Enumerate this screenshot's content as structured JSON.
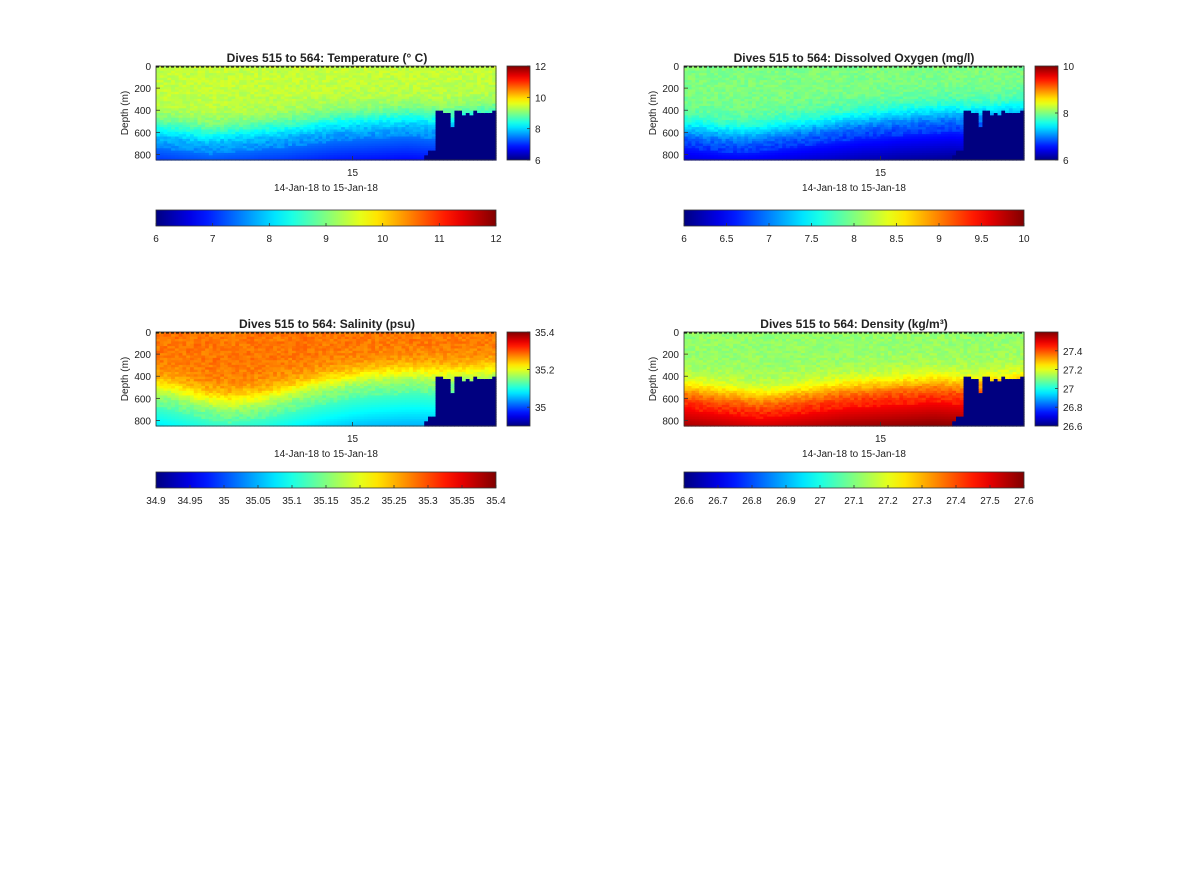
{
  "chart_data": [
    {
      "type": "heatmap",
      "title": "Dives 515 to 564: Temperature",
      "title_unit": "(° C)",
      "xlabel": "14-Jan-18 to 15-Jan-18",
      "ylabel": "Depth (m)",
      "x_ticks": [
        "15"
      ],
      "y_ticks": [
        0,
        200,
        400,
        600,
        800
      ],
      "ylim": [
        0,
        850
      ],
      "colormap": "jet",
      "clim": [
        6,
        12
      ],
      "side_colorbar_ticks": [
        6,
        8,
        10,
        12
      ],
      "bottom_colorbar_ticks": [
        6,
        7,
        8,
        9,
        10,
        11,
        12
      ],
      "profiles": {
        "surface_value": 9.4,
        "thermocline_depth_m": [
          560,
          580,
          600,
          620,
          600,
          590,
          570,
          560,
          540,
          520,
          500,
          490,
          480,
          470,
          460,
          470,
          480,
          470,
          450,
          440
        ],
        "deep_value": 7.4,
        "max_depth_m": [
          850,
          850,
          850,
          850,
          850,
          850,
          850,
          850,
          850,
          850,
          850,
          850,
          850,
          850,
          850,
          850,
          850,
          850,
          850,
          850,
          850,
          850,
          850,
          850,
          850,
          850,
          850,
          850,
          850,
          850,
          850,
          850,
          850,
          850,
          850,
          850,
          850,
          850,
          850,
          850,
          850,
          850,
          850,
          850,
          850,
          850,
          850,
          850,
          850,
          850,
          850,
          850,
          850,
          850,
          850,
          850,
          850,
          850,
          850,
          850,
          850,
          850,
          850,
          850,
          850,
          850,
          850,
          850,
          850,
          850,
          850,
          800,
          760,
          760,
          400,
          400,
          420,
          430,
          550,
          400,
          400,
          440,
          420,
          440,
          410,
          420,
          420,
          430,
          420,
          410,
          850
        ]
      }
    },
    {
      "type": "heatmap",
      "title": "Dives 515 to 564: Dissolved Oxygen (mg/l)",
      "xlabel": "14-Jan-18 to 15-Jan-18",
      "ylabel": "Depth (m)",
      "x_ticks": [
        "15"
      ],
      "y_ticks": [
        0,
        200,
        400,
        600,
        800
      ],
      "ylim": [
        0,
        850
      ],
      "colormap": "jet",
      "clim": [
        6,
        10
      ],
      "side_colorbar_ticks": [
        6,
        8,
        10
      ],
      "bottom_colorbar_ticks": [
        6,
        6.5,
        7,
        7.5,
        8,
        8.5,
        9,
        9.5,
        10
      ],
      "profiles": {
        "surface_value": 8.0,
        "thermocline_depth_m": [
          560,
          580,
          600,
          610,
          600,
          580,
          560,
          540,
          520,
          500,
          480,
          470,
          450,
          440,
          430,
          420,
          430,
          420,
          410,
          400
        ],
        "deep_value": 6.6,
        "max_depth_m": [
          850,
          850,
          850,
          850,
          850,
          850,
          850,
          850,
          850,
          850,
          850,
          850,
          850,
          850,
          850,
          850,
          850,
          850,
          850,
          850,
          850,
          850,
          850,
          850,
          850,
          850,
          850,
          850,
          850,
          850,
          850,
          850,
          850,
          850,
          850,
          850,
          850,
          850,
          850,
          850,
          850,
          850,
          850,
          850,
          850,
          850,
          850,
          850,
          850,
          850,
          850,
          850,
          850,
          850,
          850,
          850,
          850,
          850,
          850,
          850,
          850,
          850,
          850,
          850,
          850,
          850,
          850,
          850,
          850,
          850,
          850,
          800,
          760,
          760,
          400,
          400,
          420,
          430,
          550,
          400,
          400,
          440,
          420,
          440,
          410,
          420,
          420,
          430,
          420,
          410,
          850
        ]
      }
    },
    {
      "type": "heatmap",
      "title": "Dives 515 to 564: Salinity (psu)",
      "xlabel": "14-Jan-18 to 15-Jan-18",
      "ylabel": "Depth (m)",
      "x_ticks": [
        "15"
      ],
      "y_ticks": [
        0,
        200,
        400,
        600,
        800
      ],
      "ylim": [
        0,
        850
      ],
      "colormap": "jet",
      "clim": [
        34.9,
        35.4
      ],
      "side_colorbar_ticks": [
        35,
        35.2,
        35.4
      ],
      "bottom_colorbar_ticks": [
        34.9,
        34.95,
        35,
        35.05,
        35.1,
        35.15,
        35.2,
        35.25,
        35.3,
        35.35,
        35.4
      ],
      "profiles": {
        "surface_value": 35.28,
        "thermocline_depth_m": [
          500,
          540,
          580,
          620,
          640,
          620,
          600,
          560,
          520,
          480,
          450,
          420,
          400,
          390,
          380,
          380,
          390,
          380,
          370,
          360
        ],
        "deep_value": 35.12,
        "max_depth_m": [
          850,
          850,
          850,
          850,
          850,
          850,
          850,
          850,
          850,
          850,
          850,
          850,
          850,
          850,
          850,
          850,
          850,
          850,
          850,
          850,
          850,
          850,
          850,
          850,
          850,
          850,
          850,
          850,
          850,
          850,
          850,
          850,
          850,
          850,
          850,
          850,
          850,
          850,
          850,
          850,
          850,
          850,
          850,
          850,
          850,
          850,
          850,
          850,
          850,
          850,
          850,
          850,
          850,
          850,
          850,
          850,
          850,
          850,
          850,
          850,
          850,
          850,
          850,
          850,
          850,
          850,
          850,
          850,
          850,
          850,
          850,
          800,
          760,
          760,
          400,
          400,
          420,
          430,
          550,
          400,
          400,
          440,
          420,
          440,
          410,
          420,
          420,
          430,
          420,
          410,
          850
        ]
      }
    },
    {
      "type": "heatmap",
      "title": "Dives 515 to 564: Density",
      "title_unit": "(kg/m³)",
      "xlabel": "14-Jan-18 to 15-Jan-18",
      "ylabel": "Depth (m)",
      "x_ticks": [
        "15"
      ],
      "y_ticks": [
        0,
        200,
        400,
        600,
        800
      ],
      "ylim": [
        0,
        850
      ],
      "colormap": "jet",
      "clim": [
        26.6,
        27.6
      ],
      "side_colorbar_ticks": [
        26.6,
        26.8,
        27,
        27.2,
        27.4
      ],
      "bottom_colorbar_ticks": [
        26.6,
        26.7,
        26.8,
        26.9,
        27,
        27.1,
        27.2,
        27.3,
        27.4,
        27.5,
        27.6
      ],
      "profiles": {
        "surface_value": 27.12,
        "thermocline_depth_m": [
          520,
          540,
          560,
          580,
          600,
          590,
          570,
          550,
          530,
          510,
          500,
          490,
          480,
          470,
          460,
          470,
          480,
          470,
          460,
          450
        ],
        "deep_value": 27.48,
        "max_depth_m": [
          850,
          850,
          850,
          850,
          850,
          850,
          850,
          850,
          850,
          850,
          850,
          850,
          850,
          850,
          850,
          850,
          850,
          850,
          850,
          850,
          850,
          850,
          850,
          850,
          850,
          850,
          850,
          850,
          850,
          850,
          850,
          850,
          850,
          850,
          850,
          850,
          850,
          850,
          850,
          850,
          850,
          850,
          850,
          850,
          850,
          850,
          850,
          850,
          850,
          850,
          850,
          850,
          850,
          850,
          850,
          850,
          850,
          850,
          850,
          850,
          850,
          850,
          850,
          850,
          850,
          850,
          850,
          850,
          850,
          850,
          850,
          800,
          760,
          760,
          400,
          400,
          420,
          430,
          550,
          400,
          400,
          440,
          420,
          440,
          410,
          420,
          420,
          430,
          420,
          410,
          850
        ]
      }
    }
  ]
}
